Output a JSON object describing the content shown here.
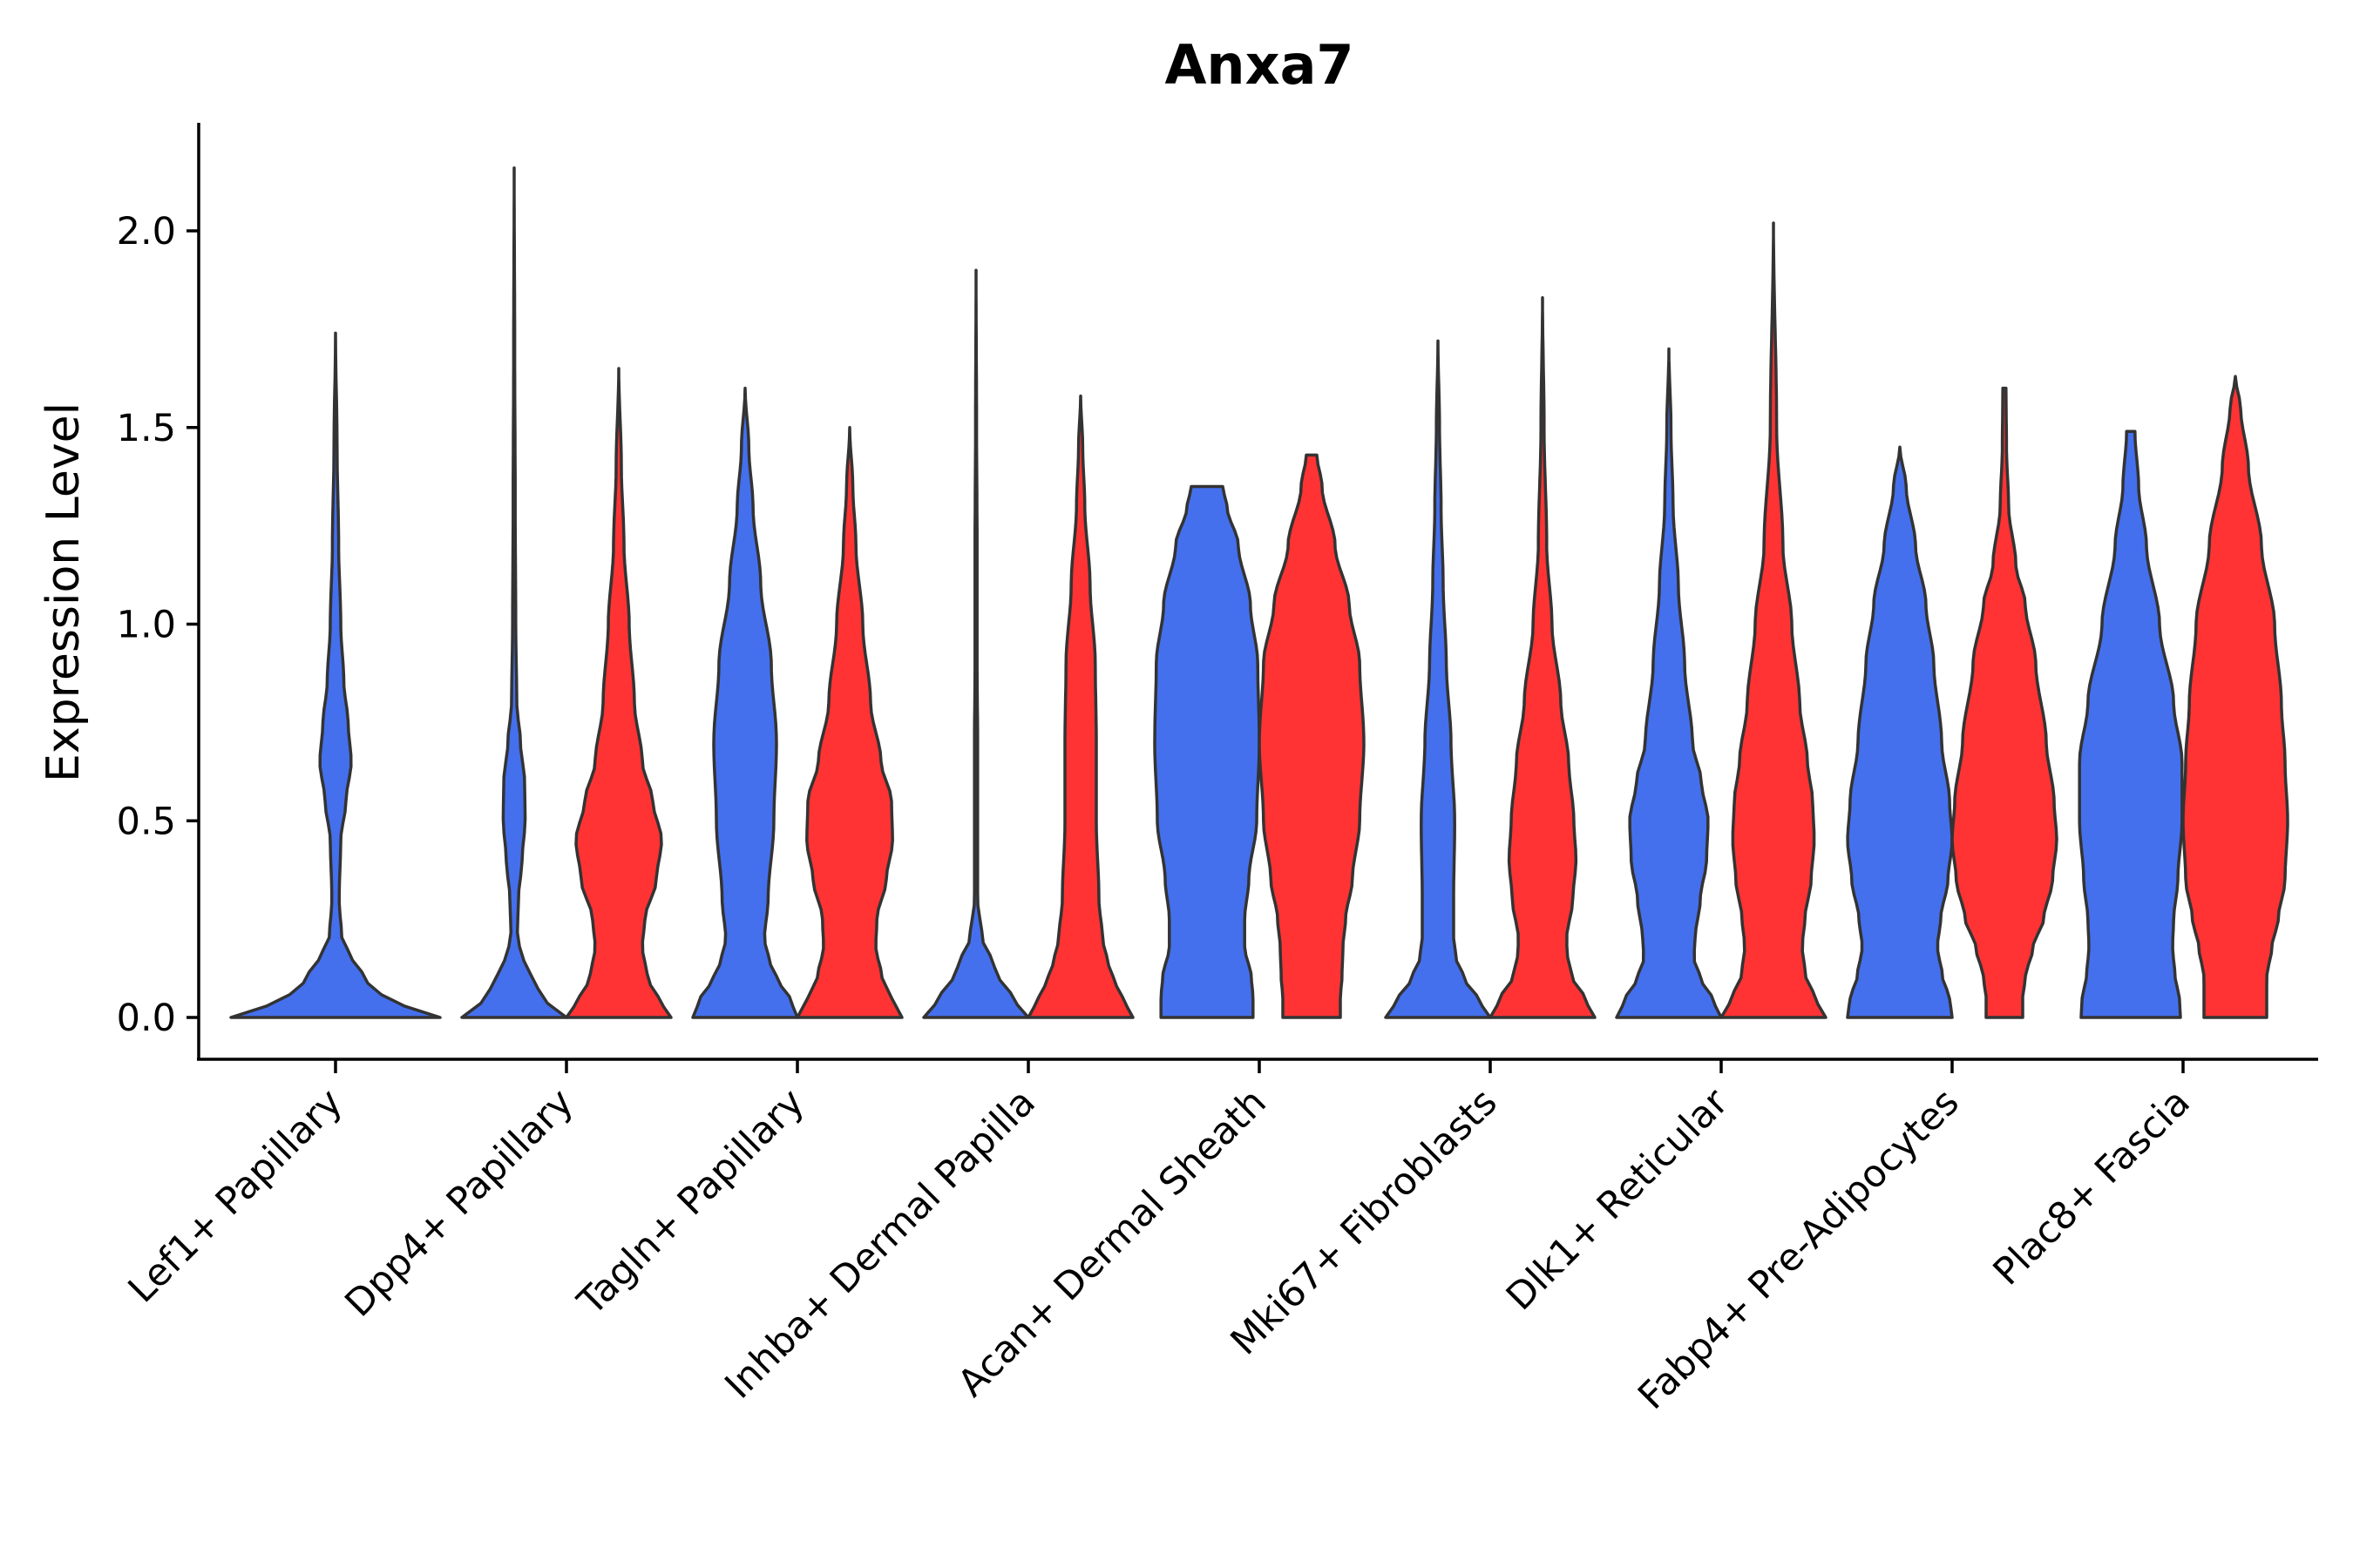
{
  "chart_data": {
    "type": "violin",
    "title": "Anxa7",
    "xlabel": "",
    "ylabel": "Expression Level",
    "ylim": [
      -0.11,
      2.27
    ],
    "yticks": [
      0.0,
      0.5,
      1.0,
      1.5,
      2.0
    ],
    "ytick_labels": [
      "0.0",
      "0.5",
      "1.0",
      "1.5",
      "2.0"
    ],
    "grid": false,
    "legend": "none",
    "colors": {
      "blue": "#4470EE",
      "red": "#FF3333",
      "outline": "#333333"
    },
    "categories": [
      "Lef1+ Papillary",
      "Dpp4+ Papillary",
      "Tagln+ Papillary",
      "Inhba+ Dermal Papilla",
      "Acan+ Dermal Sheath",
      "Mki67+ Fibroblasts",
      "Dlk1+ Reticular",
      "Fabp4+ Pre-Adipocytes",
      "Plac8+ Fascia"
    ],
    "violins": [
      {
        "category": "Lef1+ Papillary",
        "group": "blue",
        "ymax": 1.74,
        "profile": [
          [
            0,
            1.0
          ],
          [
            0.05,
            0.45
          ],
          [
            0.1,
            0.28
          ],
          [
            0.15,
            0.16
          ],
          [
            0.2,
            0.06
          ],
          [
            0.3,
            0.035
          ],
          [
            0.45,
            0.05
          ],
          [
            0.55,
            0.1
          ],
          [
            0.65,
            0.15
          ],
          [
            0.75,
            0.12
          ],
          [
            0.85,
            0.08
          ],
          [
            1.0,
            0.05
          ],
          [
            1.2,
            0.03
          ],
          [
            1.45,
            0.015
          ],
          [
            1.74,
            0.0
          ]
        ]
      },
      {
        "category": "Dpp4+ Papillary",
        "group": "blue",
        "ymax": 2.16,
        "profile": [
          [
            0,
            1.0
          ],
          [
            0.05,
            0.55
          ],
          [
            0.1,
            0.33
          ],
          [
            0.15,
            0.18
          ],
          [
            0.2,
            0.06
          ],
          [
            0.3,
            0.08
          ],
          [
            0.4,
            0.15
          ],
          [
            0.5,
            0.21
          ],
          [
            0.6,
            0.2
          ],
          [
            0.7,
            0.12
          ],
          [
            0.8,
            0.05
          ],
          [
            1.0,
            0.03
          ],
          [
            1.3,
            0.02
          ],
          [
            1.7,
            0.01
          ],
          [
            2.16,
            0.0
          ]
        ]
      },
      {
        "category": "Dpp4+ Papillary",
        "group": "red",
        "ymax": 1.65,
        "profile": [
          [
            0,
            1.0
          ],
          [
            0.05,
            0.75
          ],
          [
            0.1,
            0.55
          ],
          [
            0.18,
            0.45
          ],
          [
            0.25,
            0.5
          ],
          [
            0.35,
            0.72
          ],
          [
            0.45,
            0.82
          ],
          [
            0.55,
            0.65
          ],
          [
            0.65,
            0.45
          ],
          [
            0.8,
            0.3
          ],
          [
            1.0,
            0.2
          ],
          [
            1.2,
            0.1
          ],
          [
            1.4,
            0.05
          ],
          [
            1.65,
            0.0
          ]
        ]
      },
      {
        "category": "Tagln+ Papillary",
        "group": "blue",
        "ymax": 1.6,
        "profile": [
          [
            0,
            1.0
          ],
          [
            0.05,
            0.85
          ],
          [
            0.1,
            0.6
          ],
          [
            0.15,
            0.45
          ],
          [
            0.2,
            0.37
          ],
          [
            0.3,
            0.44
          ],
          [
            0.5,
            0.55
          ],
          [
            0.7,
            0.6
          ],
          [
            0.9,
            0.5
          ],
          [
            1.1,
            0.3
          ],
          [
            1.3,
            0.15
          ],
          [
            1.45,
            0.07
          ],
          [
            1.6,
            0.0
          ]
        ]
      },
      {
        "category": "Tagln+ Papillary",
        "group": "red",
        "ymax": 1.5,
        "profile": [
          [
            0,
            1.0
          ],
          [
            0.05,
            0.8
          ],
          [
            0.1,
            0.62
          ],
          [
            0.18,
            0.5
          ],
          [
            0.25,
            0.52
          ],
          [
            0.35,
            0.7
          ],
          [
            0.45,
            0.82
          ],
          [
            0.55,
            0.8
          ],
          [
            0.65,
            0.6
          ],
          [
            0.8,
            0.4
          ],
          [
            1.0,
            0.25
          ],
          [
            1.2,
            0.12
          ],
          [
            1.35,
            0.06
          ],
          [
            1.5,
            0.0
          ]
        ]
      },
      {
        "category": "Inhba+ Dermal Papilla",
        "group": "blue",
        "ymax": 1.9,
        "profile": [
          [
            0,
            1.0
          ],
          [
            0.05,
            0.7
          ],
          [
            0.1,
            0.45
          ],
          [
            0.15,
            0.28
          ],
          [
            0.2,
            0.12
          ],
          [
            0.3,
            0.03
          ],
          [
            0.5,
            0.03
          ],
          [
            0.7,
            0.03
          ],
          [
            0.9,
            0.02
          ],
          [
            1.2,
            0.02
          ],
          [
            1.5,
            0.01
          ],
          [
            1.9,
            0.0
          ]
        ]
      },
      {
        "category": "Inhba+ Dermal Papilla",
        "group": "red",
        "ymax": 1.58,
        "profile": [
          [
            0,
            1.0
          ],
          [
            0.05,
            0.8
          ],
          [
            0.1,
            0.62
          ],
          [
            0.15,
            0.5
          ],
          [
            0.2,
            0.42
          ],
          [
            0.3,
            0.35
          ],
          [
            0.5,
            0.3
          ],
          [
            0.7,
            0.3
          ],
          [
            0.9,
            0.28
          ],
          [
            1.1,
            0.18
          ],
          [
            1.3,
            0.08
          ],
          [
            1.45,
            0.04
          ],
          [
            1.58,
            0.0
          ]
        ]
      },
      {
        "category": "Acan+ Dermal Sheath",
        "group": "blue",
        "ymax": 1.35,
        "profile": [
          [
            0,
            0.88
          ],
          [
            0.05,
            0.88
          ],
          [
            0.1,
            0.85
          ],
          [
            0.18,
            0.72
          ],
          [
            0.25,
            0.72
          ],
          [
            0.35,
            0.8
          ],
          [
            0.5,
            0.95
          ],
          [
            0.7,
            1.0
          ],
          [
            0.9,
            0.97
          ],
          [
            1.05,
            0.83
          ],
          [
            1.2,
            0.6
          ],
          [
            1.3,
            0.38
          ],
          [
            1.35,
            0.3
          ]
        ]
      },
      {
        "category": "Acan+ Dermal Sheath",
        "group": "red",
        "ymax": 1.43,
        "profile": [
          [
            0,
            0.55
          ],
          [
            0.05,
            0.55
          ],
          [
            0.1,
            0.58
          ],
          [
            0.18,
            0.6
          ],
          [
            0.25,
            0.65
          ],
          [
            0.35,
            0.78
          ],
          [
            0.5,
            0.92
          ],
          [
            0.7,
            1.0
          ],
          [
            0.9,
            0.92
          ],
          [
            1.05,
            0.72
          ],
          [
            1.2,
            0.45
          ],
          [
            1.35,
            0.2
          ],
          [
            1.43,
            0.1
          ]
        ]
      },
      {
        "category": "Mki67+ Fibroblasts",
        "group": "blue",
        "ymax": 1.72,
        "profile": [
          [
            0,
            1.0
          ],
          [
            0.05,
            0.75
          ],
          [
            0.1,
            0.5
          ],
          [
            0.15,
            0.35
          ],
          [
            0.2,
            0.3
          ],
          [
            0.3,
            0.3
          ],
          [
            0.5,
            0.32
          ],
          [
            0.7,
            0.25
          ],
          [
            0.9,
            0.16
          ],
          [
            1.1,
            0.1
          ],
          [
            1.3,
            0.06
          ],
          [
            1.5,
            0.03
          ],
          [
            1.72,
            0.0
          ]
        ]
      },
      {
        "category": "Mki67+ Fibroblasts",
        "group": "red",
        "ymax": 1.83,
        "profile": [
          [
            0,
            1.0
          ],
          [
            0.05,
            0.8
          ],
          [
            0.1,
            0.58
          ],
          [
            0.15,
            0.48
          ],
          [
            0.2,
            0.46
          ],
          [
            0.3,
            0.58
          ],
          [
            0.4,
            0.64
          ],
          [
            0.5,
            0.6
          ],
          [
            0.65,
            0.5
          ],
          [
            0.8,
            0.35
          ],
          [
            1.0,
            0.18
          ],
          [
            1.2,
            0.08
          ],
          [
            1.5,
            0.03
          ],
          [
            1.83,
            0.0
          ]
        ]
      },
      {
        "category": "Dlk1+ Reticular",
        "group": "blue",
        "ymax": 1.7,
        "profile": [
          [
            0,
            1.0
          ],
          [
            0.05,
            0.82
          ],
          [
            0.1,
            0.6
          ],
          [
            0.15,
            0.48
          ],
          [
            0.2,
            0.5
          ],
          [
            0.3,
            0.6
          ],
          [
            0.4,
            0.72
          ],
          [
            0.5,
            0.75
          ],
          [
            0.6,
            0.62
          ],
          [
            0.7,
            0.45
          ],
          [
            0.9,
            0.3
          ],
          [
            1.1,
            0.18
          ],
          [
            1.3,
            0.08
          ],
          [
            1.5,
            0.04
          ],
          [
            1.7,
            0.0
          ]
        ]
      },
      {
        "category": "Dlk1+ Reticular",
        "group": "red",
        "ymax": 2.02,
        "profile": [
          [
            0,
            1.0
          ],
          [
            0.05,
            0.8
          ],
          [
            0.1,
            0.62
          ],
          [
            0.18,
            0.55
          ],
          [
            0.25,
            0.6
          ],
          [
            0.35,
            0.72
          ],
          [
            0.45,
            0.78
          ],
          [
            0.55,
            0.75
          ],
          [
            0.65,
            0.65
          ],
          [
            0.8,
            0.5
          ],
          [
            1.0,
            0.35
          ],
          [
            1.2,
            0.18
          ],
          [
            1.5,
            0.06
          ],
          [
            2.02,
            0.0
          ]
        ]
      },
      {
        "category": "Fabp4+ Pre-Adipocytes",
        "group": "blue",
        "ymax": 1.45,
        "profile": [
          [
            0,
            1.0
          ],
          [
            0.05,
            0.95
          ],
          [
            0.1,
            0.82
          ],
          [
            0.18,
            0.72
          ],
          [
            0.25,
            0.78
          ],
          [
            0.35,
            0.92
          ],
          [
            0.45,
            1.0
          ],
          [
            0.55,
            0.95
          ],
          [
            0.7,
            0.8
          ],
          [
            0.9,
            0.65
          ],
          [
            1.05,
            0.5
          ],
          [
            1.2,
            0.3
          ],
          [
            1.35,
            0.12
          ],
          [
            1.45,
            0.0
          ]
        ]
      },
      {
        "category": "Fabp4+ Pre-Adipocytes",
        "group": "red",
        "ymax": 1.6,
        "profile": [
          [
            0,
            0.35
          ],
          [
            0.05,
            0.35
          ],
          [
            0.1,
            0.4
          ],
          [
            0.18,
            0.55
          ],
          [
            0.25,
            0.75
          ],
          [
            0.35,
            0.92
          ],
          [
            0.45,
            1.0
          ],
          [
            0.55,
            0.95
          ],
          [
            0.7,
            0.8
          ],
          [
            0.9,
            0.6
          ],
          [
            1.05,
            0.4
          ],
          [
            1.15,
            0.22
          ],
          [
            1.3,
            0.08
          ],
          [
            1.45,
            0.04
          ],
          [
            1.6,
            0.03
          ]
        ]
      },
      {
        "category": "Plac8+ Fascia",
        "group": "blue",
        "ymax": 1.49,
        "profile": [
          [
            0,
            0.95
          ],
          [
            0.05,
            0.93
          ],
          [
            0.1,
            0.85
          ],
          [
            0.18,
            0.8
          ],
          [
            0.25,
            0.82
          ],
          [
            0.35,
            0.9
          ],
          [
            0.5,
            0.98
          ],
          [
            0.65,
            0.98
          ],
          [
            0.8,
            0.82
          ],
          [
            1.0,
            0.55
          ],
          [
            1.2,
            0.3
          ],
          [
            1.35,
            0.15
          ],
          [
            1.49,
            0.08
          ]
        ]
      },
      {
        "category": "Plac8+ Fascia",
        "group": "red",
        "ymax": 1.63,
        "profile": [
          [
            0,
            0.6
          ],
          [
            0.05,
            0.6
          ],
          [
            0.1,
            0.6
          ],
          [
            0.18,
            0.7
          ],
          [
            0.25,
            0.82
          ],
          [
            0.35,
            0.95
          ],
          [
            0.5,
            1.0
          ],
          [
            0.65,
            0.95
          ],
          [
            0.8,
            0.88
          ],
          [
            1.0,
            0.75
          ],
          [
            1.2,
            0.5
          ],
          [
            1.4,
            0.25
          ],
          [
            1.55,
            0.1
          ],
          [
            1.63,
            0.0
          ]
        ]
      }
    ]
  }
}
